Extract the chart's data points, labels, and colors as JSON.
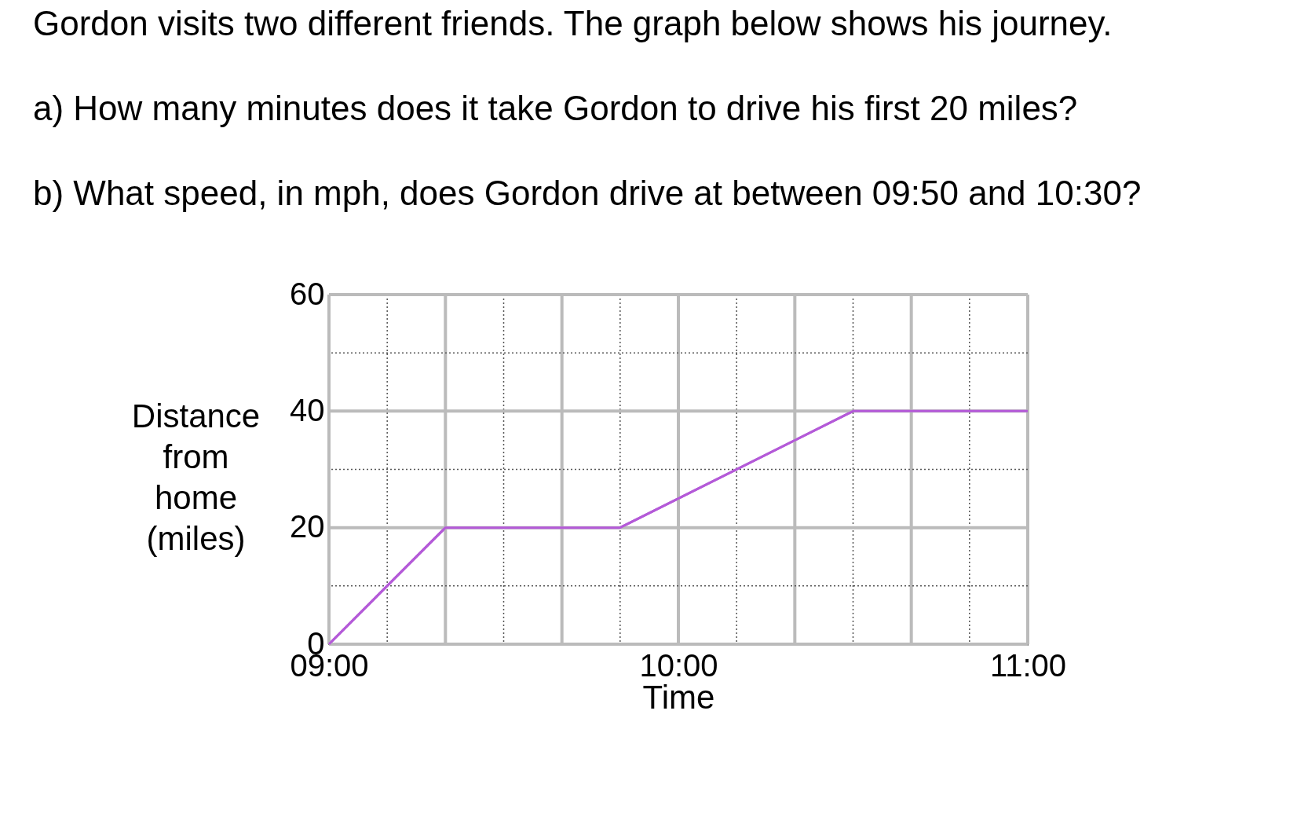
{
  "chart_data": {
    "type": "line",
    "title": "Gordon visits two different friends. The graph below shows his journey.",
    "annotations": [
      "a)  How many minutes does it take Gordon to drive his first 20 miles?",
      "b)  What speed, in mph, does Gordon drive at between 09:50 and 10:30?"
    ],
    "xlabel": "Time",
    "ylabel": "Distance from home (miles)",
    "x": [
      9,
      9.3333,
      9.8333,
      10.5,
      11
    ],
    "series": [
      {
        "color": "#b45ad8",
        "values": [
          0,
          20,
          20,
          40,
          40
        ]
      }
    ],
    "xlim": [
      9,
      11
    ],
    "ylim": [
      0,
      60
    ],
    "xticks": [
      {
        "value": 9,
        "label": "09:00"
      },
      {
        "value": 9.1667,
        "label": null
      },
      {
        "value": 9.3333,
        "label": null
      },
      {
        "value": 9.5,
        "label": null
      },
      {
        "value": 9.6667,
        "label": null
      },
      {
        "value": 9.8333,
        "label": null
      },
      {
        "value": 10,
        "label": "10:00"
      },
      {
        "value": 10.1667,
        "label": null
      },
      {
        "value": 10.3333,
        "label": null
      },
      {
        "value": 10.5,
        "label": null
      },
      {
        "value": 10.6667,
        "label": null
      },
      {
        "value": 10.8333,
        "label": null
      },
      {
        "value": 11,
        "label": "11:00"
      }
    ],
    "yticks": [
      0,
      {
        "value": 10,
        "label": null
      },
      20,
      {
        "value": 30,
        "label": null
      },
      40,
      {
        "value": 50,
        "label": null
      },
      60
    ],
    "grid": true,
    "legend": false,
    "marker": "none",
    "line_style": "solid"
  }
}
